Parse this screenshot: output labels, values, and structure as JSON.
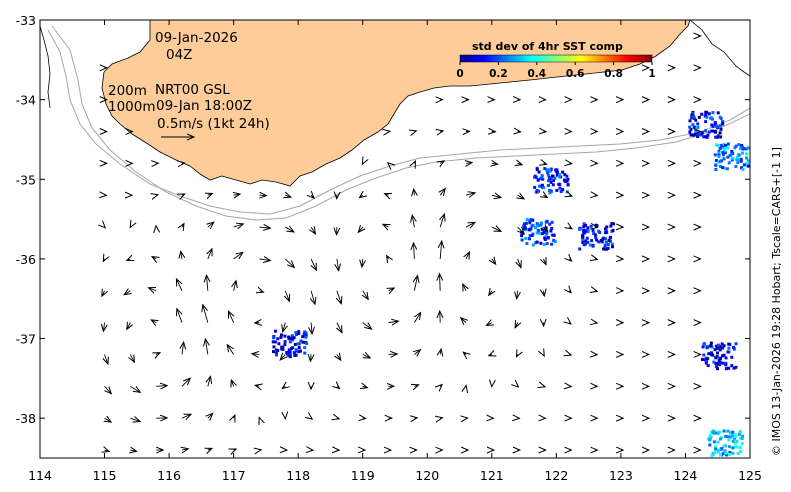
{
  "map": {
    "lon_ticks": [
      "114",
      "115",
      "116",
      "117",
      "118",
      "119",
      "120",
      "121",
      "122",
      "123",
      "124",
      "125"
    ],
    "lat_ticks": [
      "-33",
      "-34",
      "-35",
      "-36",
      "-37",
      "-38"
    ],
    "lon_range": [
      114,
      125
    ],
    "lat_range": [
      -38.5,
      -33
    ],
    "land_color": "#fdcc99",
    "ocean_color": "#ffffff",
    "contour_color": "#a6a6a6",
    "arrow_color": "#000000"
  },
  "annotations": {
    "date": "09-Jan-2026",
    "hour": "04Z",
    "contour_200": "200m",
    "contour_1000": "1000m",
    "product": "NRT00 GSL",
    "product_time": "09-Jan 18:00Z",
    "scale_label": "0.5m/s (1kt 24h)"
  },
  "colorbar": {
    "title": "std dev of 4hr SST comp",
    "ticks": [
      "0",
      "0.2",
      "0.4",
      "0.6",
      "0.8",
      "1"
    ],
    "range": [
      0,
      1
    ]
  },
  "credit": "© IMOS 13-Jan-2026 19:28 Hobart; Tscale=CARS+[-1 1]",
  "eddies": [
    {
      "lon": 119.5,
      "lat": -36.2,
      "sense": "anticlockwise"
    },
    {
      "lon": 115.8,
      "lat": -37.1,
      "sense": "anticlockwise"
    },
    {
      "lon": 120.6,
      "lat": -36.1,
      "sense": "clockwise"
    },
    {
      "lon": 117.3,
      "lat": -36.5,
      "sense": "clockwise"
    }
  ],
  "sst_patches": [
    {
      "lon": 121.9,
      "lat": -35.0,
      "value": 0.15
    },
    {
      "lon": 121.7,
      "lat": -35.65,
      "value": 0.2
    },
    {
      "lon": 122.6,
      "lat": -35.7,
      "value": 0.12
    },
    {
      "lon": 117.85,
      "lat": -37.05,
      "value": 0.1
    },
    {
      "lon": 124.3,
      "lat": -34.3,
      "value": 0.12
    },
    {
      "lon": 124.7,
      "lat": -34.7,
      "value": 0.25
    },
    {
      "lon": 124.5,
      "lat": -37.2,
      "value": 0.1
    },
    {
      "lon": 124.6,
      "lat": -38.3,
      "value": 0.3
    }
  ]
}
